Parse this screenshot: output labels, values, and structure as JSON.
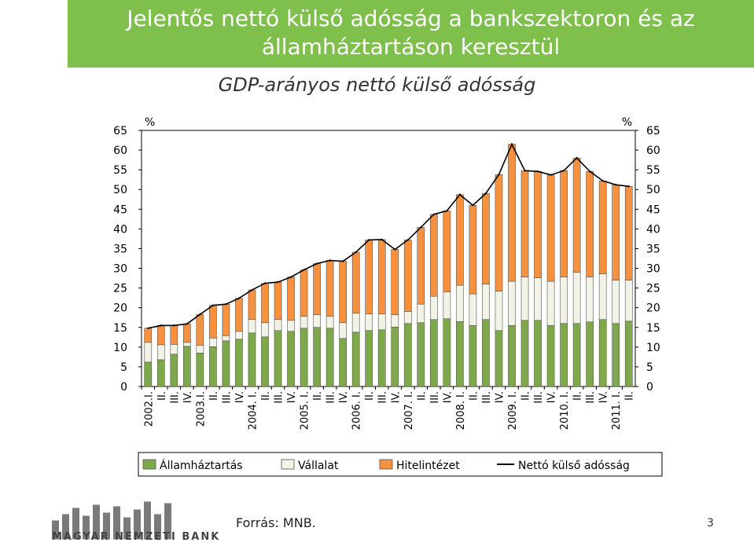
{
  "header": {
    "title": "Jelentős nettó külső adósság a bankszektoron és az államháztartáson keresztül"
  },
  "chart_data": {
    "type": "bar",
    "title": "GDP-arányos nettó külső adósság",
    "ylabel_left": "%",
    "ylabel_right": "%",
    "ylim": [
      0,
      65
    ],
    "yticks": [
      0,
      5,
      10,
      15,
      20,
      25,
      30,
      35,
      40,
      45,
      50,
      55,
      60,
      65
    ],
    "categories": [
      "2002.I.",
      "II.",
      "III.",
      "IV.",
      "2003.I.",
      "II.",
      "III.",
      "IV.",
      "2004. I.",
      "II.",
      "III.",
      "IV.",
      "2005. I.",
      "II.",
      "III.",
      "IV.",
      "2006. I.",
      "II.",
      "III.",
      "IV.",
      "2007. I.",
      "II.",
      "III.",
      "IV.",
      "2008. I.",
      "II.",
      "III.",
      "IV.",
      "2009. I.",
      "II.",
      "III.",
      "IV.",
      "2010. I.",
      "II.",
      "III.",
      "IV.",
      "2011. I.",
      "II."
    ],
    "series": [
      {
        "name": "Államháztartás",
        "color": "#7fa84a",
        "kind": "bar",
        "values": [
          6.2,
          6.8,
          8.2,
          10.2,
          8.5,
          10.1,
          11.6,
          12.0,
          13.6,
          12.6,
          14.2,
          14.0,
          14.8,
          15.0,
          14.8,
          12.2,
          13.8,
          14.2,
          14.4,
          15.1,
          16.0,
          16.2,
          17.0,
          17.2,
          16.5,
          15.5,
          17.0,
          14.2,
          15.5,
          16.8,
          16.8,
          15.5,
          16.0,
          16.0,
          16.4,
          17.0,
          16.0,
          16.6
        ]
      },
      {
        "name": "Vállalat",
        "color": "#f2f2e6",
        "kind": "bar",
        "values": [
          5.0,
          3.8,
          2.5,
          1.0,
          2.0,
          2.2,
          1.3,
          2.0,
          3.4,
          3.6,
          2.8,
          2.8,
          3.0,
          3.2,
          3.0,
          4.0,
          4.8,
          4.2,
          4.0,
          3.1,
          3.0,
          4.7,
          5.9,
          6.8,
          9.2,
          8.0,
          9.0,
          10.0,
          11.2,
          11.0,
          10.8,
          11.2,
          11.8,
          13.0,
          11.4,
          11.6,
          11.0,
          10.4
        ]
      },
      {
        "name": "Hitelintézet",
        "color": "#f5913f",
        "kind": "bar",
        "values": [
          3.6,
          4.9,
          4.8,
          4.7,
          7.8,
          8.3,
          8.0,
          8.4,
          7.5,
          10.0,
          9.5,
          11.0,
          11.8,
          13.0,
          14.2,
          15.6,
          15.5,
          18.8,
          18.9,
          16.6,
          18.2,
          19.5,
          20.8,
          20.6,
          23.0,
          22.5,
          23.0,
          29.6,
          34.8,
          27.0,
          27.0,
          27.0,
          27.0,
          29.0,
          26.8,
          23.6,
          24.2,
          23.8
        ]
      },
      {
        "name": "Nettó külső adósság",
        "color": "#000000",
        "kind": "line",
        "values": [
          14.8,
          15.5,
          15.5,
          15.9,
          18.3,
          20.6,
          20.9,
          22.4,
          24.5,
          26.2,
          26.5,
          27.8,
          29.6,
          31.2,
          32.0,
          31.8,
          34.1,
          37.2,
          37.3,
          34.8,
          37.2,
          40.4,
          43.7,
          44.6,
          48.7,
          46.0,
          49.0,
          53.8,
          61.5,
          54.8,
          54.6,
          53.7,
          54.8,
          58.0,
          54.6,
          52.2,
          51.2,
          50.8
        ]
      }
    ],
    "legend_position": "bottom",
    "grid": false
  },
  "footer": {
    "source": "Forrás: MNB.",
    "page_number": "3",
    "logo_text": "MAGYAR NEMZETI BANK"
  }
}
